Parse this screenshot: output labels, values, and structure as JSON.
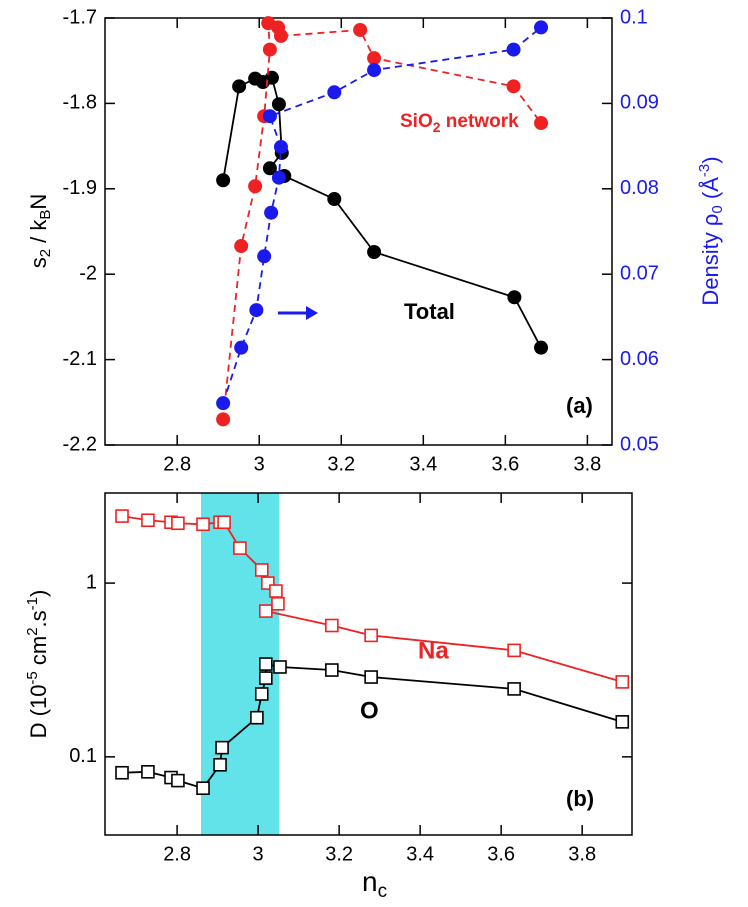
{
  "chart_data": [
    {
      "type": "line",
      "panel_label": "(a)",
      "xlim": [
        2.624,
        3.86
      ],
      "xticks": [
        2.8,
        3,
        3.2,
        3.4,
        3.6,
        3.8
      ],
      "ylim": [
        -2.2,
        -1.7
      ],
      "yticks": [
        -2.2,
        -2.1,
        -2,
        -1.9,
        -1.8,
        -1.7
      ],
      "y2lim": [
        0.05,
        0.1
      ],
      "y2ticks": [
        0.05,
        0.06,
        0.07,
        0.08,
        0.09,
        0.1
      ],
      "y2color": "#1a1aee",
      "ylabel": [
        "s",
        "2",
        " / k",
        "B",
        "N"
      ],
      "y2label": [
        "Density ρ",
        "0",
        " (Å",
        "-3",
        ")"
      ],
      "annotations": [
        [
          "SiO",
          "2",
          " network"
        ],
        "Total"
      ],
      "marker": "circle",
      "series": [
        {
          "color": "#000000",
          "linestyle": "solid",
          "x": [
            2.912,
            2.951,
            2.99,
            3.009,
            3.031,
            3.048,
            3.055,
            3.026,
            3.061,
            3.183,
            3.28,
            3.622,
            3.687
          ],
          "values": [
            -1.89,
            -1.78,
            -1.771,
            -1.775,
            -1.77,
            -1.801,
            -1.858,
            -1.876,
            -1.885,
            -1.912,
            -1.974,
            -2.027,
            -2.086
          ]
        },
        {
          "color": "#ee2222",
          "linestyle": "dashed",
          "x": [
            2.912,
            2.956,
            2.99,
            3.012,
            3.026,
            3.022,
            3.046,
            3.053,
            3.246,
            3.28,
            3.62,
            3.687
          ],
          "values": [
            -2.17,
            -1.967,
            -1.897,
            -1.815,
            -1.737,
            -1.706,
            -1.711,
            -1.721,
            -1.714,
            -1.747,
            -1.78,
            -1.823
          ]
        },
        {
          "color": "#1a1aee",
          "linestyle": "dashed",
          "axis": "y2",
          "x": [
            2.912,
            2.956,
            2.993,
            3.012,
            3.029,
            3.048,
            3.053,
            3.026,
            3.183,
            3.28,
            3.62,
            3.687
          ],
          "values": [
            0.0549,
            0.0614,
            0.0658,
            0.0721,
            0.0772,
            0.0813,
            0.0849,
            0.0885,
            0.0913,
            0.0939,
            0.0963,
            0.0989
          ]
        }
      ]
    },
    {
      "type": "line",
      "panel_label": "(b)",
      "yscale": "log",
      "xlim": [
        2.622,
        3.923
      ],
      "xticks": [
        2.8,
        3,
        3.2,
        3.4,
        3.6,
        3.8
      ],
      "ylim": [
        0.0355,
        3.3
      ],
      "yticks": [
        0.1,
        1
      ],
      "xlabel": [
        "n",
        "c"
      ],
      "ylabel": [
        "D (10",
        "-5",
        " cm",
        "2",
        ".s",
        "-1",
        ")"
      ],
      "annotations": [
        "Na",
        "O"
      ],
      "shade_xrange": [
        2.859,
        3.052
      ],
      "shade_color": "#62e3ea",
      "marker": "square",
      "series": [
        {
          "color": "#ee2222",
          "linestyle": "solid",
          "x": [
            2.664,
            2.728,
            2.785,
            2.802,
            2.864,
            2.906,
            2.916,
            2.955,
            3.009,
            3.024,
            3.044,
            3.049,
            3.019,
            3.182,
            3.279,
            3.632,
            3.899
          ],
          "values": [
            2.43,
            2.3,
            2.24,
            2.21,
            2.18,
            2.24,
            2.24,
            1.59,
            1.19,
            1.0,
            0.9,
            0.76,
            0.69,
            0.57,
            0.5,
            0.41,
            0.27
          ]
        },
        {
          "color": "#000000",
          "linestyle": "solid",
          "x": [
            2.664,
            2.728,
            2.785,
            2.802,
            2.864,
            2.906,
            2.911,
            2.997,
            3.009,
            3.019,
            3.019,
            3.054,
            3.182,
            3.279,
            3.632,
            3.899
          ],
          "values": [
            0.081,
            0.082,
            0.076,
            0.073,
            0.066,
            0.09,
            0.113,
            0.168,
            0.23,
            0.284,
            0.342,
            0.329,
            0.316,
            0.288,
            0.246,
            0.159
          ]
        }
      ]
    }
  ]
}
